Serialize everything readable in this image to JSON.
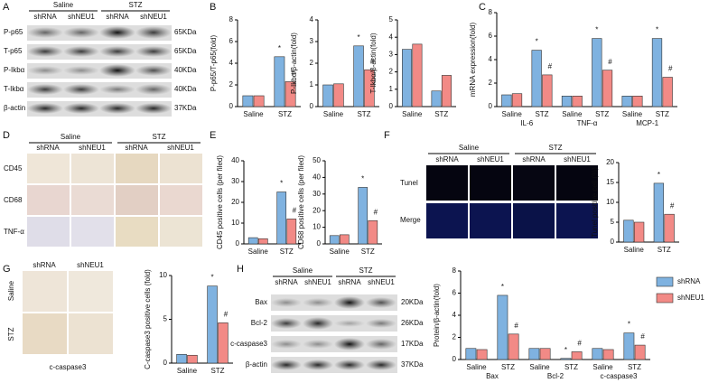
{
  "panel_labels": [
    "A",
    "B",
    "C",
    "D",
    "E",
    "F",
    "G",
    "H"
  ],
  "blot_a": {
    "groups": [
      "Saline",
      "STZ"
    ],
    "lanes": [
      "shRNA",
      "shNEU1",
      "shRNA",
      "shNEU1"
    ],
    "rows": [
      {
        "name": "P-p65",
        "size": "65KDa"
      },
      {
        "name": "T-p65",
        "size": "65KDa"
      },
      {
        "name": "P-Ikbα",
        "size": "40KDa"
      },
      {
        "name": "T-Ikbα",
        "size": "40KDa"
      },
      {
        "name": "β-actin",
        "size": "37KDa"
      }
    ]
  },
  "histology_d": {
    "groups": [
      "Saline",
      "STZ"
    ],
    "lanes": [
      "shRNA",
      "shNEU1",
      "shRNA",
      "shNEU1"
    ],
    "rows": [
      "CD45",
      "CD68",
      "TNF-α"
    ]
  },
  "tunel_f": {
    "groups": [
      "Saline",
      "STZ"
    ],
    "lanes": [
      "shRNA",
      "shNEU1",
      "shRNA",
      "shNEU1"
    ],
    "rows": [
      "Tunel",
      "Merge"
    ]
  },
  "caspase_g": {
    "columns": [
      "shRNA",
      "shNEU1"
    ],
    "rows": [
      "Saline",
      "STZ"
    ],
    "caption": "c-caspase3"
  },
  "blot_h": {
    "groups": [
      "Saline",
      "STZ"
    ],
    "lanes": [
      "shRNA",
      "shNEU1",
      "shRNA",
      "shNEU1"
    ],
    "rows": [
      {
        "name": "Bax",
        "size": "20KDa"
      },
      {
        "name": "Bcl-2",
        "size": "26KDa"
      },
      {
        "name": "c-caspase3",
        "size": "17KDa"
      },
      {
        "name": "β-actin",
        "size": "37KDa"
      }
    ]
  },
  "chart_data": [
    {
      "type": "bar",
      "ylabel": "P-p65/T-p65(fold)",
      "categories": [
        "Saline",
        "STZ"
      ],
      "ylim": [
        0,
        8
      ],
      "yticks": [
        0,
        2,
        4,
        6,
        8
      ],
      "series": [
        {
          "color": "#7fb2e0",
          "values": [
            1.0,
            4.6
          ],
          "annotations": [
            null,
            "*"
          ]
        },
        {
          "color": "#f28a86",
          "values": [
            1.0,
            2.3
          ],
          "annotations": [
            null,
            "#"
          ]
        }
      ]
    },
    {
      "type": "bar",
      "ylabel": "P-Ikbα/β-actin(fold)",
      "categories": [
        "Saline",
        "STZ"
      ],
      "ylim": [
        0,
        4
      ],
      "yticks": [
        0,
        1,
        2,
        3,
        4
      ],
      "series": [
        {
          "color": "#7fb2e0",
          "values": [
            1.0,
            2.8
          ],
          "annotations": [
            null,
            "*"
          ]
        },
        {
          "color": "#f28a86",
          "values": [
            1.05,
            1.7
          ],
          "annotations": [
            null,
            "#"
          ]
        }
      ]
    },
    {
      "type": "bar",
      "ylabel": "T-Ikbα/β-actin(fold)",
      "categories": [
        "Saline",
        "STZ"
      ],
      "ylim": [
        0,
        5
      ],
      "yticks": [
        0,
        1,
        2,
        3,
        4,
        5
      ],
      "series": [
        {
          "color": "#7fb2e0",
          "values": [
            3.3,
            0.9
          ]
        },
        {
          "color": "#f28a86",
          "values": [
            3.6,
            1.8
          ]
        }
      ]
    },
    {
      "type": "bar",
      "ylabel": "mRNA expression(fold)",
      "categories": [
        "Saline",
        "STZ",
        "Saline",
        "STZ",
        "Saline",
        "STZ"
      ],
      "groups": [
        "IL-6",
        "TNF-α",
        "MCP-1"
      ],
      "ylim": [
        0,
        8
      ],
      "yticks": [
        0,
        2,
        4,
        6,
        8
      ],
      "series": [
        {
          "color": "#7fb2e0",
          "values": [
            1.0,
            4.8,
            0.9,
            5.8,
            0.9,
            5.8
          ],
          "annotations": [
            null,
            "*",
            null,
            "*",
            null,
            "*"
          ]
        },
        {
          "color": "#f28a86",
          "values": [
            1.1,
            2.7,
            0.9,
            3.1,
            0.9,
            2.5
          ],
          "annotations": [
            null,
            "#",
            null,
            "#",
            null,
            "#"
          ]
        }
      ]
    },
    {
      "type": "bar",
      "ylabel": "CD45 positive cells (per filed)",
      "categories": [
        "Saline",
        "STZ"
      ],
      "ylim": [
        0,
        40
      ],
      "yticks": [
        0,
        10,
        20,
        30,
        40
      ],
      "series": [
        {
          "color": "#7fb2e0",
          "values": [
            3,
            25
          ],
          "annotations": [
            null,
            "*"
          ]
        },
        {
          "color": "#f28a86",
          "values": [
            2.5,
            12
          ],
          "annotations": [
            null,
            "#"
          ]
        }
      ]
    },
    {
      "type": "bar",
      "ylabel": "CD68 positive cells (per filed)",
      "categories": [
        "Saline",
        "STZ"
      ],
      "ylim": [
        0,
        50
      ],
      "yticks": [
        0,
        10,
        20,
        30,
        40,
        50
      ],
      "series": [
        {
          "color": "#7fb2e0",
          "values": [
            5,
            34
          ],
          "annotations": [
            null,
            "*"
          ]
        },
        {
          "color": "#f28a86",
          "values": [
            5.5,
            14
          ],
          "annotations": [
            null,
            "#"
          ]
        }
      ]
    },
    {
      "type": "bar",
      "ylabel": "Tunel positive cell (%)",
      "categories": [
        "Saline",
        "STZ"
      ],
      "ylim": [
        0,
        20
      ],
      "yticks": [
        0,
        5,
        10,
        15,
        20
      ],
      "series": [
        {
          "color": "#7fb2e0",
          "values": [
            5.5,
            14.8
          ],
          "annotations": [
            null,
            "*"
          ]
        },
        {
          "color": "#f28a86",
          "values": [
            5,
            7
          ],
          "annotations": [
            null,
            "#"
          ]
        }
      ]
    },
    {
      "type": "bar",
      "ylabel": "C-caspase3 positive cells (fold)",
      "categories": [
        "Saline",
        "STZ"
      ],
      "ylim": [
        0,
        10
      ],
      "yticks": [
        0,
        5,
        10
      ],
      "series": [
        {
          "color": "#7fb2e0",
          "values": [
            1.0,
            8.8
          ],
          "annotations": [
            null,
            "*"
          ]
        },
        {
          "color": "#f28a86",
          "values": [
            0.9,
            4.6
          ],
          "annotations": [
            null,
            "#"
          ]
        }
      ]
    },
    {
      "type": "bar",
      "ylabel": "Protein/β-actin(fold)",
      "categories": [
        "Saline",
        "STZ",
        "Saline",
        "STZ",
        "Saline",
        "STZ"
      ],
      "groups": [
        "Bax",
        "Bcl-2",
        "c-caspase3"
      ],
      "ylim": [
        0,
        8
      ],
      "yticks": [
        0,
        2,
        4,
        6,
        8
      ],
      "legend": "right",
      "series": [
        {
          "name": "shRNA",
          "color": "#7fb2e0",
          "values": [
            1.0,
            5.8,
            1.0,
            0.1,
            1.0,
            2.4
          ],
          "annotations": [
            null,
            "*",
            null,
            "*",
            null,
            "*"
          ]
        },
        {
          "name": "shNEU1",
          "color": "#f28a86",
          "values": [
            0.9,
            2.3,
            1.0,
            0.7,
            0.9,
            1.3
          ],
          "annotations": [
            null,
            "#",
            null,
            "#",
            null,
            "#"
          ]
        }
      ]
    }
  ]
}
